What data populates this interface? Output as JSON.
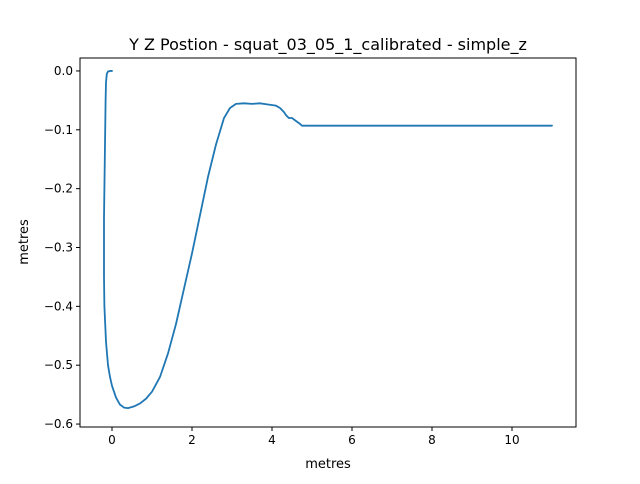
{
  "chart_data": {
    "type": "line",
    "title": "Y Z Postion - squat_03_05_1_calibrated - simple_z",
    "xlabel": "metres",
    "ylabel": "metres",
    "xlim": [
      -0.8,
      11.6
    ],
    "ylim": [
      -0.605,
      0.022
    ],
    "xticks": [
      0,
      2,
      4,
      6,
      8,
      10
    ],
    "yticks": [
      0.0,
      -0.1,
      -0.2,
      -0.3,
      -0.4,
      -0.5,
      -0.6
    ],
    "xtick_labels": [
      "0",
      "2",
      "4",
      "6",
      "8",
      "10"
    ],
    "ytick_labels": [
      "0.0",
      "−0.1",
      "−0.2",
      "−0.3",
      "−0.4",
      "−0.5",
      "−0.6"
    ],
    "grid": false,
    "series": [
      {
        "color": "#1f77b4",
        "x": [
          0.0,
          -0.05,
          -0.1,
          -0.13,
          -0.15,
          -0.16,
          -0.17,
          -0.18,
          -0.2,
          -0.2,
          -0.2,
          -0.19,
          -0.15,
          -0.1,
          -0.05,
          0.0,
          0.1,
          0.2,
          0.3,
          0.4,
          0.55,
          0.7,
          0.85,
          1.0,
          1.2,
          1.4,
          1.6,
          1.8,
          2.0,
          2.2,
          2.4,
          2.6,
          2.8,
          2.95,
          3.1,
          3.3,
          3.5,
          3.7,
          3.9,
          4.1,
          4.2,
          4.3,
          4.35,
          4.42,
          4.5,
          4.6,
          4.7,
          4.75,
          5.0,
          6.0,
          7.0,
          8.0,
          9.0,
          10.0,
          11.0
        ],
        "y": [
          0.0,
          0.0,
          -0.001,
          -0.005,
          -0.02,
          -0.05,
          -0.1,
          -0.15,
          -0.25,
          -0.3,
          -0.35,
          -0.4,
          -0.46,
          -0.5,
          -0.52,
          -0.535,
          -0.555,
          -0.567,
          -0.572,
          -0.573,
          -0.57,
          -0.565,
          -0.557,
          -0.545,
          -0.52,
          -0.48,
          -0.43,
          -0.37,
          -0.31,
          -0.245,
          -0.18,
          -0.125,
          -0.08,
          -0.063,
          -0.056,
          -0.055,
          -0.056,
          -0.055,
          -0.057,
          -0.059,
          -0.063,
          -0.07,
          -0.075,
          -0.08,
          -0.08,
          -0.085,
          -0.09,
          -0.093,
          -0.093,
          -0.093,
          -0.093,
          -0.093,
          -0.093,
          -0.093,
          -0.093
        ]
      }
    ]
  }
}
